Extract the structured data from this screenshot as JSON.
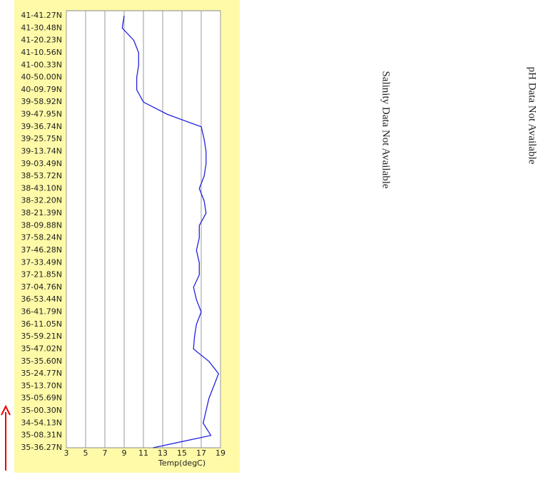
{
  "chart_data": {
    "type": "line",
    "xlabel": "Temp(degC)",
    "categories": [
      "41-41.27N",
      "41-30.48N",
      "41-20.23N",
      "41-10.56N",
      "41-00.33N",
      "40-50.00N",
      "40-09.79N",
      "39-58.92N",
      "39-47.95N",
      "39-36.74N",
      "39-25.75N",
      "39-13.74N",
      "39-03.49N",
      "38-53.72N",
      "38-43.10N",
      "38-32.20N",
      "38-21.39N",
      "38-09.88N",
      "37-58.24N",
      "37-46.28N",
      "37-33.49N",
      "37-21.85N",
      "37-04.76N",
      "36-53.44N",
      "36-41.79N",
      "36-11.05N",
      "35-59.21N",
      "35-47.02N",
      "35-35.60N",
      "35-24.77N",
      "35-13.70N",
      "35-05.69N",
      "35-00.30N",
      "34-54.13N",
      "35-08.31N",
      "35-36.27N"
    ],
    "values": [
      9,
      8.8,
      10,
      10.5,
      10.5,
      10.3,
      10.3,
      11,
      13.5,
      17,
      17.3,
      17.5,
      17.5,
      17.3,
      16.8,
      17.3,
      17.5,
      16.8,
      16.8,
      16.5,
      16.8,
      16.8,
      16.2,
      16.5,
      17,
      16.5,
      16.3,
      16.2,
      17.8,
      18.8,
      18.3,
      17.8,
      17.5,
      17.2,
      18,
      12
    ],
    "color": "#2222dd",
    "xlim": [
      3,
      19
    ],
    "xticks": [
      3,
      5,
      7,
      9,
      11,
      13,
      15,
      17,
      19
    ],
    "grid": true,
    "annotations": [
      "Salinity Data Not Available",
      "pH Data Not Available"
    ]
  }
}
